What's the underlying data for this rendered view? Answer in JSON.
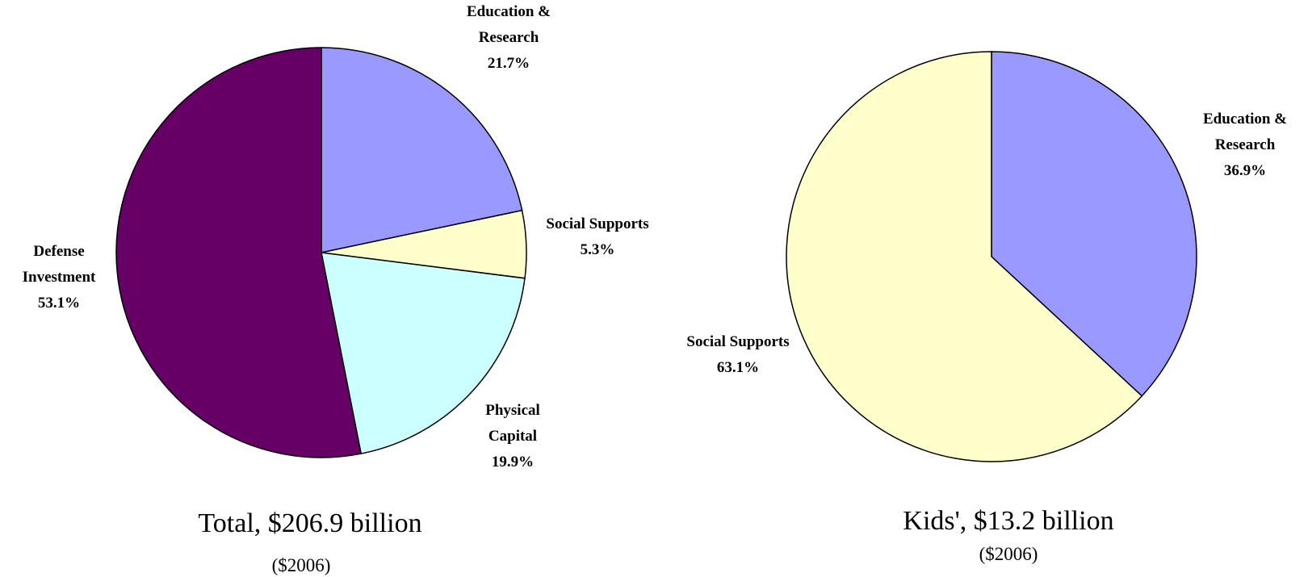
{
  "chart_data": [
    {
      "type": "pie",
      "title": "Total, $206.9 billion",
      "subtitle": "($2006)",
      "slices": [
        {
          "label_lines": [
            "Education &",
            "Research"
          ],
          "value_label": "21.7%",
          "value": 21.7,
          "color": "#9999ff"
        },
        {
          "label_lines": [
            "Social Supports"
          ],
          "value_label": "5.3%",
          "value": 5.3,
          "color": "#ffffcc"
        },
        {
          "label_lines": [
            "Physical",
            "Capital"
          ],
          "value_label": "19.9%",
          "value": 19.9,
          "color": "#ccffff"
        },
        {
          "label_lines": [
            "Defense",
            "Investment"
          ],
          "value_label": "53.1%",
          "value": 53.1,
          "color": "#660066"
        }
      ]
    },
    {
      "type": "pie",
      "title": "Kids', $13.2 billion",
      "subtitle": "($2006)",
      "slices": [
        {
          "label_lines": [
            "Education &",
            "Research"
          ],
          "value_label": "36.9%",
          "value": 36.9,
          "color": "#9999ff"
        },
        {
          "label_lines": [
            "Social Supports"
          ],
          "value_label": "63.1%",
          "value": 63.1,
          "color": "#ffffcc"
        }
      ]
    }
  ]
}
